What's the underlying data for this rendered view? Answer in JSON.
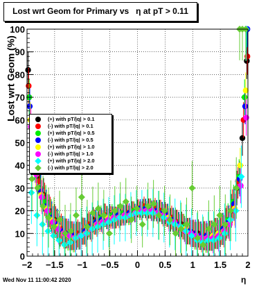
{
  "title": "Lost wrt Geom for Primary vs   η at pT > 0.11",
  "timestamp": "Wed Nov 11 11:00:42 2020",
  "chart_data": {
    "type": "scatter",
    "title": "Lost wrt Geom for Primary vs   η at pT > 0.11",
    "xlabel": "η",
    "ylabel": "Lost wrt Geom (%)",
    "xlim": [
      -2,
      2
    ],
    "ylim": [
      0,
      100
    ],
    "x_ticks": [
      "−2",
      "−1.5",
      "−1",
      "−0.5",
      "0",
      "0.5",
      "1",
      "1.5",
      "2"
    ],
    "y_ticks": [
      "0",
      "10",
      "20",
      "30",
      "40",
      "50",
      "60",
      "70",
      "80",
      "90",
      "100"
    ],
    "grid": true,
    "legend_position": "left-middle",
    "series": [
      {
        "name": "(+) with pT/|q| > 0.1",
        "color": "#000000",
        "marker": "circle",
        "x": [
          -1.98,
          -1.9,
          -1.8,
          -1.7,
          -1.6,
          -1.5,
          -1.4,
          -1.3,
          -1.2,
          -1.1,
          -1.0,
          -0.9,
          -0.8,
          -0.7,
          -0.6,
          -0.5,
          -0.4,
          -0.3,
          -0.2,
          -0.1,
          0.0,
          0.1,
          0.2,
          0.3,
          0.4,
          0.5,
          0.6,
          0.7,
          0.8,
          0.9,
          1.0,
          1.1,
          1.2,
          1.3,
          1.4,
          1.5,
          1.6,
          1.7,
          1.8,
          1.9,
          1.98
        ],
        "y": [
          82,
          50,
          35,
          27,
          20,
          16,
          11,
          10,
          9,
          9,
          11,
          13,
          16,
          17,
          18,
          18,
          17,
          18,
          19,
          20,
          21,
          21,
          21,
          20,
          20,
          19,
          16,
          15,
          14,
          11,
          10,
          10,
          9,
          9,
          10,
          11,
          14,
          20,
          30,
          52,
          86
        ]
      },
      {
        "name": "(-) with pT/|q| > 0.1",
        "color": "#ff0000",
        "marker": "circle",
        "x": [
          -1.97,
          -1.88,
          -1.78,
          -1.68,
          -1.58,
          -1.48,
          -1.38,
          -1.28,
          -1.18,
          -1.08,
          -0.98,
          -0.88,
          -0.78,
          -0.68,
          -0.58,
          -0.48,
          -0.38,
          -0.28,
          -0.18,
          -0.08,
          0.02,
          0.12,
          0.22,
          0.32,
          0.42,
          0.52,
          0.62,
          0.72,
          0.82,
          0.92,
          1.02,
          1.12,
          1.22,
          1.32,
          1.42,
          1.52,
          1.62,
          1.72,
          1.82,
          1.92,
          1.99
        ],
        "y": [
          75,
          45,
          33,
          25,
          19,
          15,
          12,
          10,
          9,
          10,
          11,
          14,
          15,
          16,
          18,
          17,
          17,
          18,
          19,
          20,
          21,
          22,
          21,
          21,
          20,
          18,
          17,
          15,
          13,
          11,
          10,
          9,
          9,
          9,
          10,
          12,
          15,
          22,
          33,
          60,
          88
        ]
      },
      {
        "name": "(+) with pT/|q| > 0.5",
        "color": "#00ee00",
        "marker": "circle",
        "x": [
          -1.96,
          -1.86,
          -1.76,
          -1.66,
          -1.56,
          -1.46,
          -1.36,
          -1.26,
          -1.16,
          -1.06,
          -0.96,
          -0.86,
          -0.76,
          -0.66,
          -0.56,
          -0.46,
          -0.36,
          -0.26,
          -0.16,
          -0.06,
          0.04,
          0.14,
          0.24,
          0.34,
          0.44,
          0.54,
          0.64,
          0.74,
          0.84,
          0.94,
          1.04,
          1.14,
          1.24,
          1.34,
          1.44,
          1.54,
          1.64,
          1.74,
          1.84,
          1.94,
          1.98
        ],
        "y": [
          70,
          42,
          30,
          24,
          18,
          14,
          11,
          9,
          8,
          9,
          11,
          13,
          15,
          17,
          17,
          18,
          18,
          19,
          18,
          20,
          20,
          21,
          21,
          20,
          19,
          18,
          16,
          14,
          13,
          11,
          9,
          9,
          8,
          9,
          10,
          12,
          16,
          24,
          35,
          70,
          100
        ]
      },
      {
        "name": "(-) with pT/|q| > 0.5",
        "color": "#0000ff",
        "marker": "circle",
        "x": [
          -1.95,
          -1.85,
          -1.75,
          -1.65,
          -1.55,
          -1.45,
          -1.35,
          -1.25,
          -1.15,
          -1.05,
          -0.95,
          -0.85,
          -0.75,
          -0.65,
          -0.55,
          -0.45,
          -0.35,
          -0.25,
          -0.15,
          -0.05,
          0.05,
          0.15,
          0.25,
          0.35,
          0.45,
          0.55,
          0.65,
          0.75,
          0.85,
          0.95,
          1.05,
          1.15,
          1.25,
          1.35,
          1.45,
          1.55,
          1.65,
          1.75,
          1.85,
          1.95,
          1.99
        ],
        "y": [
          66,
          40,
          29,
          22,
          17,
          14,
          11,
          10,
          9,
          9,
          11,
          13,
          15,
          16,
          17,
          17,
          18,
          18,
          19,
          19,
          21,
          21,
          20,
          20,
          19,
          18,
          16,
          14,
          12,
          11,
          10,
          9,
          9,
          9,
          10,
          12,
          15,
          23,
          34,
          66,
          100
        ]
      },
      {
        "name": "(+) with pT/|q| > 1.0",
        "color": "#ffff00",
        "marker": "circle",
        "x": [
          -1.94,
          -1.84,
          -1.74,
          -1.64,
          -1.54,
          -1.44,
          -1.34,
          -1.24,
          -1.14,
          -1.04,
          -0.94,
          -0.84,
          -0.74,
          -0.64,
          -0.54,
          -0.44,
          -0.34,
          -0.24,
          -0.14,
          -0.04,
          0.06,
          0.16,
          0.26,
          0.36,
          0.46,
          0.56,
          0.66,
          0.76,
          0.86,
          0.96,
          1.06,
          1.16,
          1.26,
          1.36,
          1.46,
          1.56,
          1.66,
          1.76,
          1.86,
          1.96
        ],
        "y": [
          60,
          38,
          27,
          21,
          16,
          13,
          10,
          9,
          8,
          9,
          10,
          12,
          14,
          15,
          17,
          17,
          17,
          18,
          18,
          19,
          20,
          20,
          20,
          19,
          18,
          17,
          15,
          13,
          12,
          10,
          9,
          8,
          8,
          9,
          10,
          11,
          14,
          21,
          40,
          73
        ]
      },
      {
        "name": "(-) with pT/|q| > 1.0",
        "color": "#ff00ff",
        "marker": "circle",
        "x": [
          -1.93,
          -1.83,
          -1.73,
          -1.63,
          -1.53,
          -1.43,
          -1.33,
          -1.23,
          -1.13,
          -1.03,
          -0.93,
          -0.83,
          -0.73,
          -0.63,
          -0.53,
          -0.43,
          -0.33,
          -0.23,
          -0.13,
          -0.03,
          0.07,
          0.17,
          0.27,
          0.37,
          0.47,
          0.57,
          0.67,
          0.77,
          0.87,
          0.97,
          1.07,
          1.17,
          1.27,
          1.37,
          1.47,
          1.57,
          1.67,
          1.77,
          1.87,
          1.97
        ],
        "y": [
          57,
          36,
          26,
          20,
          15,
          12,
          10,
          9,
          8,
          9,
          10,
          12,
          14,
          15,
          16,
          17,
          17,
          18,
          18,
          19,
          20,
          20,
          20,
          19,
          18,
          16,
          15,
          13,
          11,
          10,
          9,
          8,
          8,
          8,
          9,
          11,
          14,
          20,
          31,
          61
        ]
      },
      {
        "name": "(+) with pT/|q| > 2.0",
        "color": "#00ffff",
        "marker": "diamond",
        "x": [
          -1.92,
          -1.82,
          -1.72,
          -1.62,
          -1.52,
          -1.42,
          -1.32,
          -1.22,
          -1.12,
          -1.02,
          -0.92,
          -0.82,
          -0.72,
          -0.62,
          -0.52,
          -0.42,
          -0.32,
          -0.22,
          -0.12,
          -0.02,
          0.08,
          0.18,
          0.28,
          0.38,
          0.48,
          0.58,
          0.68,
          0.78,
          0.88,
          0.98,
          1.08,
          1.18,
          1.28,
          1.38,
          1.48,
          1.58,
          1.68,
          1.78,
          1.88,
          1.97
        ],
        "y": [
          28,
          18,
          14,
          11,
          9,
          7,
          5,
          6,
          8,
          9,
          10,
          12,
          13,
          14,
          15,
          16,
          17,
          17,
          18,
          19,
          19,
          19,
          19,
          18,
          17,
          15,
          14,
          13,
          11,
          9,
          7,
          6,
          7,
          7,
          8,
          10,
          16,
          20,
          35,
          100
        ]
      },
      {
        "name": "(-) with pT/|q| > 2.0",
        "color": "#66cc33",
        "marker": "diamond",
        "x": [
          -1.91,
          -1.81,
          -1.71,
          -1.61,
          -1.51,
          -1.41,
          -1.31,
          -1.21,
          -1.11,
          -1.01,
          -0.91,
          -0.81,
          -0.71,
          -0.61,
          -0.51,
          -0.41,
          -0.31,
          -0.21,
          -0.11,
          -0.01,
          0.09,
          0.19,
          0.29,
          0.39,
          0.49,
          0.59,
          0.69,
          0.79,
          0.89,
          0.99,
          1.09,
          1.19,
          1.29,
          1.39,
          1.49,
          1.59,
          1.69,
          1.79,
          1.85,
          1.9,
          1.96
        ],
        "y": [
          34,
          30,
          22,
          17,
          13,
          16,
          10,
          11,
          18,
          26,
          13,
          19,
          21,
          18,
          10,
          20,
          22,
          24,
          16,
          21,
          14,
          22,
          23,
          18,
          20,
          16,
          10,
          12,
          14,
          30,
          8,
          5,
          12,
          14,
          18,
          14,
          20,
          30,
          100,
          100,
          100
        ]
      }
    ]
  }
}
